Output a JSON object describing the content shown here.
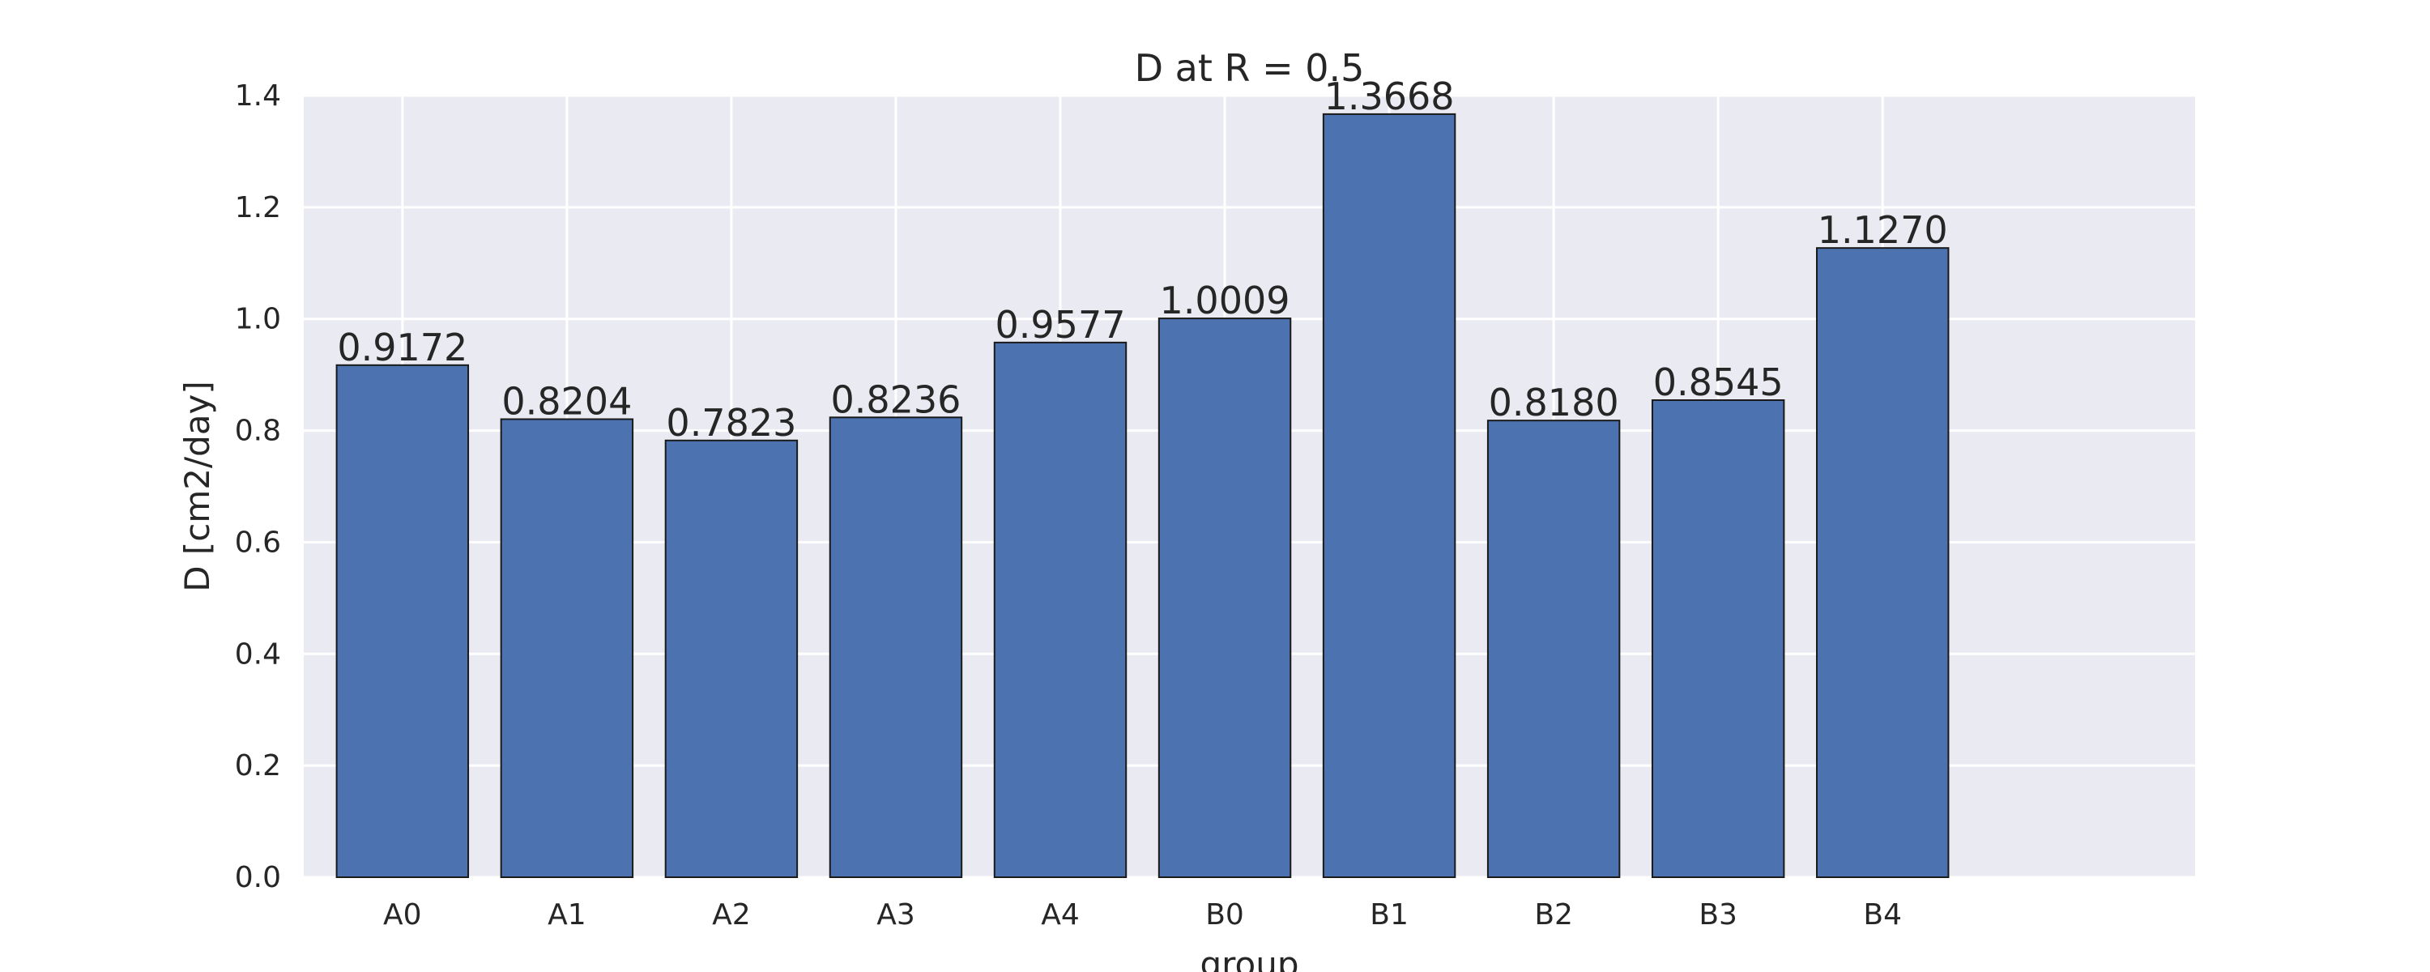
{
  "chart_data": {
    "type": "bar",
    "title": "D at R = 0.5",
    "xlabel": "group",
    "ylabel": "D [cm2/day]",
    "categories": [
      "A0",
      "A1",
      "A2",
      "A3",
      "A4",
      "B0",
      "B1",
      "B2",
      "B3",
      "B4"
    ],
    "values": [
      0.9172,
      0.8204,
      0.7823,
      0.8236,
      0.9577,
      1.0009,
      1.3668,
      0.818,
      0.8545,
      1.127
    ],
    "value_labels": [
      "0.9172",
      "0.8204",
      "0.7823",
      "0.8236",
      "0.9577",
      "1.0009",
      "1.3668",
      "0.8180",
      "0.8545",
      "1.1270"
    ],
    "ylim": [
      0,
      1.4
    ],
    "yticks": [
      0.0,
      0.2,
      0.4,
      0.6,
      0.8,
      1.0,
      1.2,
      1.4
    ],
    "ytick_labels": [
      "0.0",
      "0.2",
      "0.4",
      "0.6",
      "0.8",
      "1.0",
      "1.2",
      "1.4"
    ],
    "grid": true,
    "colors": {
      "bar": "#4C72B0",
      "bar_edge": "#1a1a1a",
      "plot_background": "#EAEAF2",
      "grid": "#FFFFFF",
      "text": "#262626"
    }
  }
}
